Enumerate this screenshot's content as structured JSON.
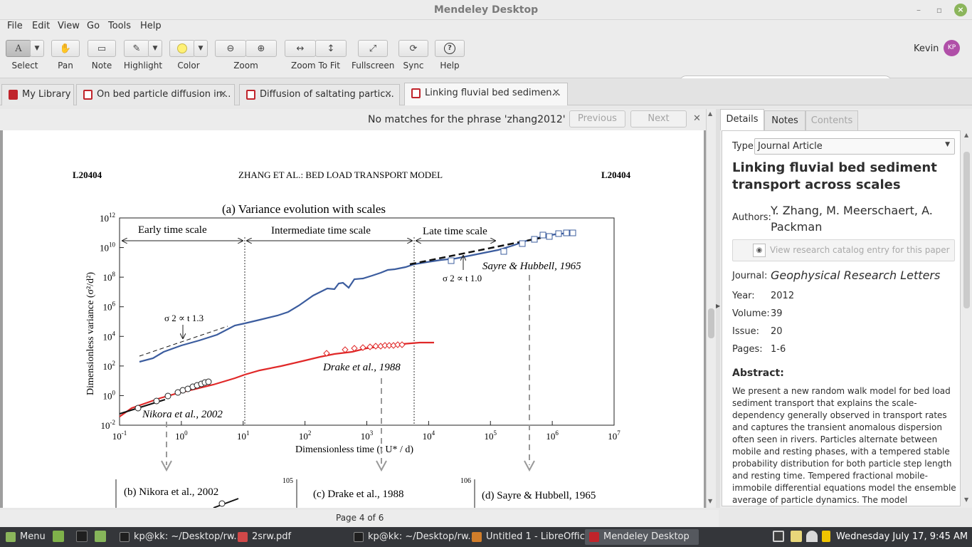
{
  "window": {
    "title": "Mendeley Desktop"
  },
  "menu": [
    "File",
    "Edit",
    "View",
    "Go",
    "Tools",
    "Help"
  ],
  "toolbar": {
    "select": "Select",
    "pan": "Pan",
    "note": "Note",
    "highlight": "Highlight",
    "color": "Color",
    "zoom": "Zoom",
    "zoom_to_fit": "Zoom To Fit",
    "fullscreen": "Fullscreen",
    "sync": "Sync",
    "help": "Help",
    "highlight_color": "#fff176"
  },
  "search": {
    "value": "zhang2012"
  },
  "user": {
    "name": "Kevin",
    "initials": "KP",
    "avatar_color": "#b04fa8"
  },
  "tabs": [
    "My Library",
    "On bed particle diffusion in...",
    "Diffusion of saltating partic...",
    "Linking fluvial bed sedimen..."
  ],
  "find": {
    "message": "No matches for the phrase 'zhang2012'",
    "previous": "Previous",
    "next": "Next"
  },
  "pdf": {
    "header_left": "L20404",
    "header_center": "ZHANG ET AL.: BED LOAD TRANSPORT MODEL",
    "header_right": "L20404",
    "figure_title": "(a)  Variance evolution with scales",
    "early": "Early time scale",
    "intermediate": "Intermediate time scale",
    "late": "Late time scale",
    "ylabel": "Dimensionless variance (σ²/d²)",
    "xlabel": "Dimensionless time (t U* / d)",
    "ann_13": "σ 2 ∝ t 1.3",
    "ann_10": "σ 2 ∝ t 1.0",
    "sayre": "Sayre & Hubbell, 1965",
    "drake": "Drake et al., 1988",
    "nikora": "Nikora et al., 2002",
    "yticks": [
      "10-2",
      "100",
      "102",
      "104",
      "106",
      "108",
      "1010",
      "1012"
    ],
    "xticks": [
      "10-1",
      "100",
      "101",
      "102",
      "103",
      "104",
      "105",
      "106",
      "107"
    ],
    "sub_b": "(b) Nikora et al., 2002",
    "sub_c": "(c) Drake et al., 1988",
    "sub_d": "(d) Sayre & Hubbell, 1965",
    "sub_c_tick": "105",
    "sub_d_tick": "106"
  },
  "status": {
    "page": "Page 4 of 6"
  },
  "side": {
    "tabs": [
      "Details",
      "Notes",
      "Contents"
    ],
    "type_label": "Type:",
    "type": "Journal Article",
    "title": "Linking fluvial bed sediment transport across scales",
    "authors_label": "Authors:",
    "authors": "Y. Zhang, M. Meerschaert, A. Packman",
    "catalog": "View research catalog entry for this paper",
    "journal_label": "Journal:",
    "journal": "Geophysical Research Letters",
    "year_label": "Year:",
    "year": "2012",
    "volume_label": "Volume:",
    "volume": "39",
    "issue_label": "Issue:",
    "issue": "20",
    "pages_label": "Pages:",
    "pages": "1-6",
    "abstract_label": "Abstract:",
    "abstract": "We present a new random walk model for bed load sediment transport that explains the scale-dependency generally observed in transport rates and captures the transient anomalous dispersion often seen in rivers. Particles alternate between mobile and resting phases, with a tempered stable probability distribution for both particle step length and resting time. Tempered fractional mobile-immobile differential equations model the ensemble average of particle dynamics. The model"
  },
  "taskbar": {
    "menu": "Menu",
    "items": [
      "kp@kk: ~/Desktop/rw...",
      "2srw.pdf",
      "kp@kk: ~/Desktop/rw...",
      "Untitled 1 - LibreOffic...",
      "Mendeley Desktop"
    ],
    "clock": "Wednesday July 17,  9:45 AM"
  }
}
